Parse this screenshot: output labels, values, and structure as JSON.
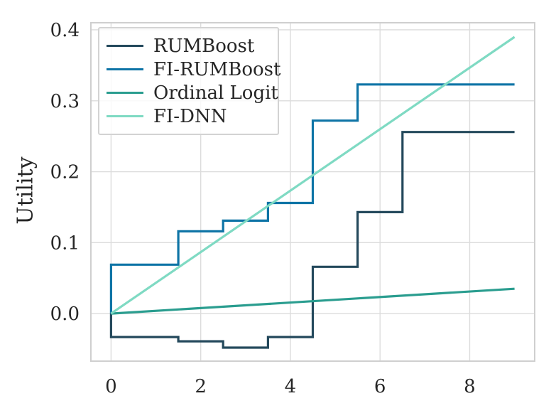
{
  "chart_data": {
    "type": "line",
    "title": "",
    "xlabel": "",
    "ylabel": "Utility",
    "grid": true,
    "legend_position": "upper left",
    "xlim": [
      -0.45,
      9.45
    ],
    "ylim": [
      -0.067,
      0.41
    ],
    "xticks": [
      0,
      2,
      4,
      6,
      8
    ],
    "xtick_labels": [
      "0",
      "2",
      "4",
      "6",
      "8"
    ],
    "yticks": [
      0.0,
      0.1,
      0.2,
      0.3,
      0.4
    ],
    "ytick_labels": [
      "0.0",
      "0.1",
      "0.2",
      "0.3",
      "0.4"
    ],
    "series": [
      {
        "name": "RUMBoost",
        "color": "#24495c",
        "style": "step",
        "points": [
          [
            0,
            0
          ],
          [
            0,
            -0.033
          ],
          [
            1.5,
            -0.033
          ],
          [
            1.5,
            -0.039
          ],
          [
            2.5,
            -0.039
          ],
          [
            2.5,
            -0.048
          ],
          [
            3.5,
            -0.048
          ],
          [
            3.5,
            -0.033
          ],
          [
            4.5,
            -0.033
          ],
          [
            4.5,
            0.066
          ],
          [
            5.5,
            0.066
          ],
          [
            5.5,
            0.143
          ],
          [
            6.5,
            0.143
          ],
          [
            6.5,
            0.256
          ],
          [
            9,
            0.256
          ]
        ]
      },
      {
        "name": "FI-RUMBoost",
        "color": "#0e74a6",
        "style": "step",
        "points": [
          [
            0,
            0
          ],
          [
            0,
            0.069
          ],
          [
            1.5,
            0.069
          ],
          [
            1.5,
            0.116
          ],
          [
            2.5,
            0.116
          ],
          [
            2.5,
            0.131
          ],
          [
            3.5,
            0.131
          ],
          [
            3.5,
            0.156
          ],
          [
            4.5,
            0.156
          ],
          [
            4.5,
            0.272
          ],
          [
            5.5,
            0.272
          ],
          [
            5.5,
            0.323
          ],
          [
            9,
            0.323
          ]
        ]
      },
      {
        "name": "Ordinal Logit",
        "color": "#2a9d8f",
        "style": "line",
        "points": [
          [
            0,
            0
          ],
          [
            9,
            0.035
          ]
        ]
      },
      {
        "name": "FI-DNN",
        "color": "#7fdac3",
        "style": "line",
        "points": [
          [
            0,
            0
          ],
          [
            9,
            0.39
          ]
        ]
      }
    ],
    "style": {
      "grid_color": "#dcdcdc",
      "spine_color": "#cfcfcf",
      "text_color": "#262626",
      "background": "#ffffff"
    }
  }
}
